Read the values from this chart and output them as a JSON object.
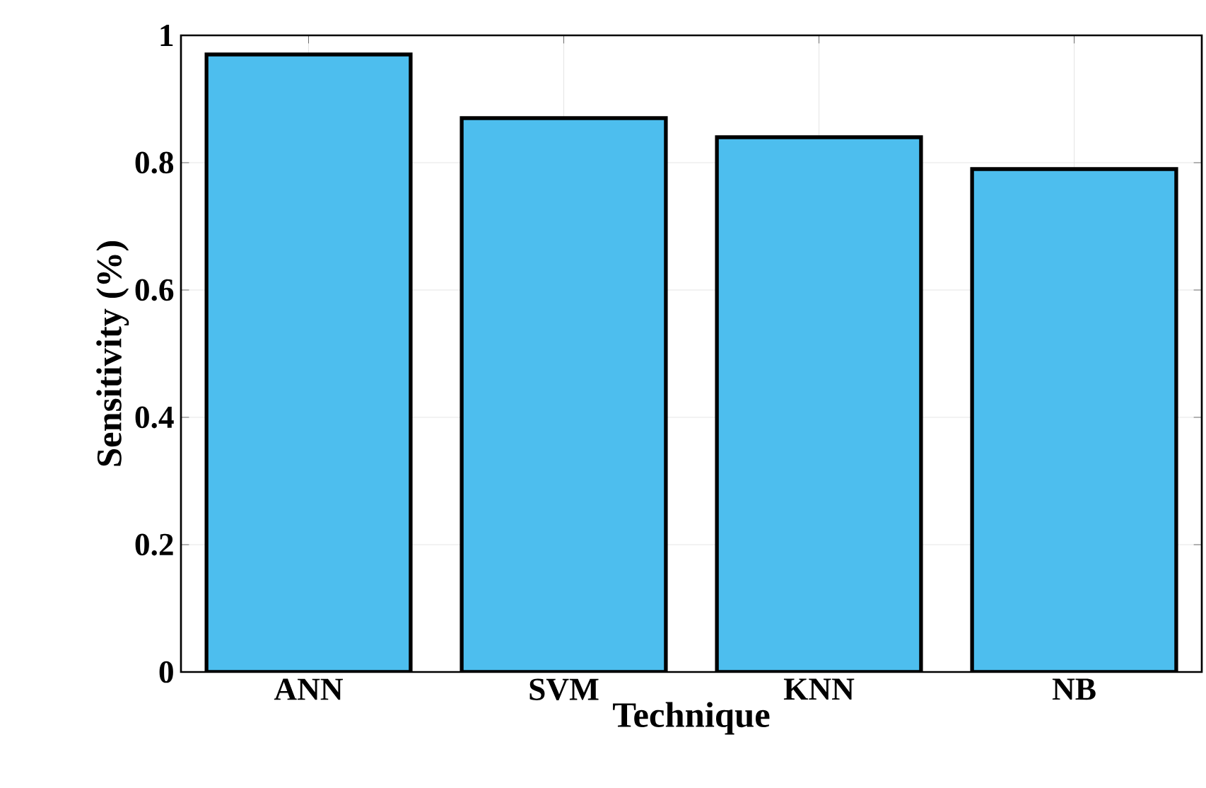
{
  "chart_data": {
    "type": "bar",
    "xlabel": "Technique",
    "ylabel": "Sensitivity (%)",
    "categories": [
      "ANN",
      "SVM",
      "KNN",
      "NB"
    ],
    "values": [
      0.97,
      0.87,
      0.84,
      0.79
    ],
    "color": "#4dbeee",
    "ylim": [
      0,
      1
    ],
    "yticks": [
      0,
      0.2,
      0.4,
      0.6,
      0.8,
      1
    ],
    "grid": true
  }
}
